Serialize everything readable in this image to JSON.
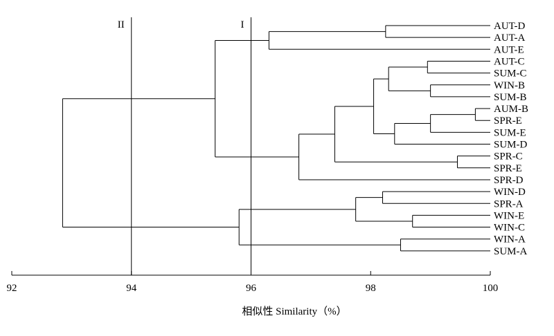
{
  "chart_data": {
    "type": "dendrogram",
    "title": "",
    "xlabel": "相似性 Similarity（%）",
    "xlim": [
      92,
      100
    ],
    "x_ticks": [
      "92",
      "94",
      "96",
      "98",
      "100"
    ],
    "leaves": [
      "AUT-D",
      "AUT-A",
      "AUT-E",
      "AUT-C",
      "SUM-C",
      "WIN-B",
      "SUM-B",
      "AUM-B",
      "SPR-E",
      "SUM-E",
      "SUM-D",
      "SPR-C",
      "SPR-E",
      "SPR-D",
      "WIN-D",
      "SPR-A",
      "WIN-E",
      "WIN-C",
      "WIN-A",
      "SUM-A"
    ],
    "merges": [
      {
        "left": [
          0,
          1
        ],
        "similarity": 98.25
      },
      {
        "left": [
          0,
          1,
          2
        ],
        "similarity": 96.3
      },
      {
        "left": [
          3,
          4
        ],
        "similarity": 98.95
      },
      {
        "left": [
          5,
          6
        ],
        "similarity": 99.0
      },
      {
        "left": [
          3,
          4,
          5,
          6
        ],
        "similarity": 98.3
      },
      {
        "left": [
          7,
          8
        ],
        "similarity": 99.75
      },
      {
        "left": [
          7,
          8,
          9
        ],
        "similarity": 99.0
      },
      {
        "left": [
          7,
          8,
          9,
          10
        ],
        "similarity": 98.4
      },
      {
        "left": [
          3,
          4,
          5,
          6,
          7,
          8,
          9,
          10
        ],
        "similarity": 98.05
      },
      {
        "left": [
          11,
          12
        ],
        "similarity": 99.45
      },
      {
        "left": [
          3,
          4,
          5,
          6,
          7,
          8,
          9,
          10,
          11,
          12
        ],
        "similarity": 97.4
      },
      {
        "left": [
          3,
          4,
          5,
          6,
          7,
          8,
          9,
          10,
          11,
          12,
          13
        ],
        "similarity": 96.8
      },
      {
        "left": [
          0,
          1,
          2,
          3,
          4,
          5,
          6,
          7,
          8,
          9,
          10,
          11,
          12,
          13
        ],
        "similarity": 95.4
      },
      {
        "left": [
          14,
          15
        ],
        "similarity": 98.2
      },
      {
        "left": [
          16,
          17
        ],
        "similarity": 98.7
      },
      {
        "left": [
          14,
          15,
          16,
          17
        ],
        "similarity": 97.75
      },
      {
        "left": [
          18,
          19
        ],
        "similarity": 98.5
      },
      {
        "left": [
          14,
          15,
          16,
          17,
          18,
          19
        ],
        "similarity": 95.8
      },
      {
        "left": [
          0,
          1,
          2,
          3,
          4,
          5,
          6,
          7,
          8,
          9,
          10,
          11,
          12,
          13,
          14,
          15,
          16,
          17,
          18,
          19
        ],
        "similarity": 92.85
      }
    ],
    "cut_lines": [
      {
        "label": "I",
        "similarity": 96.0
      },
      {
        "label": "II",
        "similarity": 94.0
      }
    ]
  }
}
